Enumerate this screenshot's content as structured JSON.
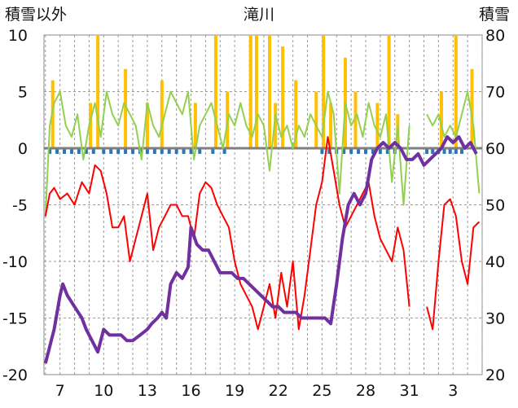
{
  "chart_data": {
    "type": "line",
    "title": "滝川",
    "ylabel_left": "積雪以外",
    "ylabel_right": "積雪",
    "y_left": {
      "min": -20,
      "max": 10,
      "ticks": [
        10,
        5,
        0,
        -5,
        -10,
        -15,
        -20
      ]
    },
    "y_right": {
      "min": 20,
      "max": 80,
      "ticks": [
        80,
        70,
        60,
        50,
        40,
        30,
        20
      ]
    },
    "x_ticks": [
      "7",
      "10",
      "13",
      "16",
      "19",
      "22",
      "25",
      "28",
      "31",
      "3"
    ],
    "x_tick_positions": [
      6,
      9,
      12,
      15,
      18,
      21,
      24,
      27,
      30,
      33
    ],
    "x_range": [
      4.9,
      35
    ],
    "grid": true,
    "series": [
      {
        "axis": "right",
        "color": "#7030a0",
        "values": [
          [
            5.0,
            22
          ],
          [
            5.2,
            24
          ],
          [
            5.4,
            26
          ],
          [
            5.6,
            28
          ],
          [
            5.8,
            31
          ],
          [
            6.0,
            34
          ],
          [
            6.2,
            36
          ],
          [
            6.5,
            34
          ],
          [
            7.0,
            32
          ],
          [
            7.5,
            30
          ],
          [
            7.8,
            28
          ],
          [
            8.2,
            26
          ],
          [
            8.6,
            24
          ],
          [
            9.0,
            28
          ],
          [
            9.4,
            27
          ],
          [
            9.8,
            27
          ],
          [
            10.2,
            27
          ],
          [
            10.6,
            26
          ],
          [
            11.0,
            26
          ],
          [
            11.5,
            27
          ],
          [
            12.0,
            28
          ],
          [
            12.3,
            29
          ],
          [
            12.7,
            30
          ],
          [
            13.0,
            31
          ],
          [
            13.3,
            30
          ],
          [
            13.6,
            36
          ],
          [
            14.0,
            38
          ],
          [
            14.4,
            37
          ],
          [
            14.8,
            39
          ],
          [
            15.0,
            46
          ],
          [
            15.4,
            43
          ],
          [
            15.8,
            42
          ],
          [
            16.2,
            42
          ],
          [
            16.6,
            40
          ],
          [
            17.0,
            38
          ],
          [
            17.4,
            38
          ],
          [
            17.8,
            38
          ],
          [
            18.2,
            37
          ],
          [
            18.6,
            37
          ],
          [
            19.0,
            36
          ],
          [
            19.4,
            35
          ],
          [
            19.8,
            34
          ],
          [
            20.2,
            33
          ],
          [
            20.6,
            32
          ],
          [
            21.0,
            32
          ],
          [
            21.4,
            31
          ],
          [
            21.8,
            31
          ],
          [
            22.2,
            31
          ],
          [
            22.6,
            30
          ],
          [
            23.0,
            30
          ],
          [
            23.4,
            30
          ],
          [
            23.8,
            30
          ],
          [
            24.2,
            30
          ],
          [
            24.6,
            29
          ],
          [
            25.0,
            36
          ],
          [
            25.4,
            44
          ],
          [
            25.8,
            50
          ],
          [
            26.2,
            52
          ],
          [
            26.6,
            50
          ],
          [
            27.0,
            52
          ],
          [
            27.4,
            58
          ],
          [
            27.8,
            60
          ],
          [
            28.2,
            61
          ],
          [
            28.6,
            60
          ],
          [
            29.0,
            61
          ],
          [
            29.4,
            60
          ],
          [
            29.8,
            58
          ],
          [
            30.2,
            58
          ],
          [
            30.6,
            59
          ],
          [
            31.0,
            57
          ],
          [
            31.4,
            58
          ],
          [
            31.8,
            59
          ],
          [
            32.2,
            60
          ],
          [
            32.6,
            62
          ],
          [
            33.0,
            61
          ],
          [
            33.4,
            62
          ],
          [
            33.8,
            60
          ],
          [
            34.2,
            61
          ],
          [
            34.6,
            59
          ]
        ]
      },
      {
        "axis": "left",
        "color": "#ff0000",
        "values": [
          [
            5.0,
            -6
          ],
          [
            5.3,
            -4
          ],
          [
            5.6,
            -3.5
          ],
          [
            6.0,
            -4.5
          ],
          [
            6.5,
            -4
          ],
          [
            7.0,
            -5
          ],
          [
            7.5,
            -3
          ],
          [
            8.0,
            -4
          ],
          [
            8.4,
            -1.5
          ],
          [
            8.8,
            -2
          ],
          [
            9.2,
            -4
          ],
          [
            9.6,
            -7
          ],
          [
            10.0,
            -7
          ],
          [
            10.4,
            -6
          ],
          [
            10.8,
            -10
          ],
          [
            11.2,
            -8
          ],
          [
            11.6,
            -6
          ],
          [
            12.0,
            -4
          ],
          [
            12.4,
            -9
          ],
          [
            12.8,
            -7
          ],
          [
            13.2,
            -6
          ],
          [
            13.6,
            -5
          ],
          [
            14.0,
            -5
          ],
          [
            14.4,
            -6
          ],
          [
            14.8,
            -6
          ],
          [
            15.2,
            -8
          ],
          [
            15.6,
            -4
          ],
          [
            16.0,
            -3
          ],
          [
            16.4,
            -3.5
          ],
          [
            16.8,
            -5
          ],
          [
            17.2,
            -6
          ],
          [
            17.6,
            -7
          ],
          [
            18.0,
            -10
          ],
          [
            18.4,
            -12
          ],
          [
            18.8,
            -13
          ],
          [
            19.2,
            -14
          ],
          [
            19.6,
            -16
          ],
          [
            20.0,
            -14
          ],
          [
            20.4,
            -12
          ],
          [
            20.8,
            -15
          ],
          [
            21.2,
            -11
          ],
          [
            21.6,
            -14
          ],
          [
            22.0,
            -10
          ],
          [
            22.4,
            -16
          ],
          [
            22.8,
            -13
          ],
          [
            23.2,
            -9
          ],
          [
            23.6,
            -5
          ],
          [
            24.0,
            -3
          ],
          [
            24.4,
            1
          ],
          [
            24.8,
            -2
          ],
          [
            25.2,
            -5
          ],
          [
            25.6,
            -7
          ],
          [
            26.0,
            -6
          ],
          [
            26.4,
            -5
          ],
          [
            26.8,
            -4
          ],
          [
            27.2,
            -3
          ],
          [
            27.6,
            -6
          ],
          [
            28.0,
            -8
          ],
          [
            28.4,
            -9
          ],
          [
            28.8,
            -10
          ],
          [
            29.2,
            -7
          ],
          [
            29.6,
            -9
          ],
          [
            30.0,
            -14
          ],
          [
            30.4,
            null
          ],
          [
            31.0,
            null
          ],
          [
            31.2,
            -14
          ],
          [
            31.6,
            -16
          ],
          [
            32.0,
            -10
          ],
          [
            32.4,
            -5
          ],
          [
            32.8,
            -4.5
          ],
          [
            33.2,
            -6
          ],
          [
            33.6,
            -10
          ],
          [
            34.0,
            -12
          ],
          [
            34.4,
            -7
          ],
          [
            34.8,
            -6.5
          ]
        ]
      },
      {
        "axis": "left",
        "color": "#92d050",
        "values": [
          [
            5.0,
            -6
          ],
          [
            5.3,
            2
          ],
          [
            5.6,
            4
          ],
          [
            6.0,
            5
          ],
          [
            6.4,
            2
          ],
          [
            6.8,
            1
          ],
          [
            7.2,
            3
          ],
          [
            7.6,
            -1
          ],
          [
            8.0,
            2
          ],
          [
            8.4,
            4
          ],
          [
            8.8,
            1
          ],
          [
            9.2,
            5
          ],
          [
            9.6,
            3
          ],
          [
            10.0,
            2
          ],
          [
            10.4,
            4
          ],
          [
            10.8,
            3
          ],
          [
            11.2,
            2
          ],
          [
            11.6,
            -1
          ],
          [
            12.0,
            4
          ],
          [
            12.4,
            2
          ],
          [
            12.8,
            1
          ],
          [
            13.2,
            3
          ],
          [
            13.6,
            5
          ],
          [
            14.0,
            4
          ],
          [
            14.4,
            3
          ],
          [
            14.8,
            5
          ],
          [
            15.2,
            -1
          ],
          [
            15.6,
            2
          ],
          [
            16.0,
            3
          ],
          [
            16.4,
            4
          ],
          [
            16.8,
            2
          ],
          [
            17.2,
            0
          ],
          [
            17.6,
            3
          ],
          [
            18.0,
            2
          ],
          [
            18.4,
            4
          ],
          [
            18.8,
            2
          ],
          [
            19.2,
            1
          ],
          [
            19.6,
            3
          ],
          [
            20.0,
            2
          ],
          [
            20.4,
            -2
          ],
          [
            20.8,
            3
          ],
          [
            21.2,
            1
          ],
          [
            21.6,
            2
          ],
          [
            22.0,
            0
          ],
          [
            22.4,
            2
          ],
          [
            22.8,
            1
          ],
          [
            23.2,
            3
          ],
          [
            23.6,
            2
          ],
          [
            24.0,
            1
          ],
          [
            24.4,
            5
          ],
          [
            24.8,
            3
          ],
          [
            25.2,
            -4
          ],
          [
            25.6,
            4
          ],
          [
            26.0,
            2
          ],
          [
            26.4,
            3
          ],
          [
            26.8,
            1
          ],
          [
            27.2,
            4
          ],
          [
            27.6,
            2
          ],
          [
            28.0,
            1
          ],
          [
            28.4,
            3
          ],
          [
            28.8,
            -3
          ],
          [
            29.2,
            2
          ],
          [
            29.6,
            -5
          ],
          [
            30.0,
            2
          ],
          [
            30.4,
            null
          ],
          [
            31.0,
            null
          ],
          [
            31.2,
            3
          ],
          [
            31.6,
            2
          ],
          [
            32.0,
            3
          ],
          [
            32.4,
            1
          ],
          [
            32.8,
            2
          ],
          [
            33.2,
            1
          ],
          [
            33.6,
            3
          ],
          [
            34.0,
            5
          ],
          [
            34.4,
            2
          ],
          [
            34.8,
            -4
          ]
        ]
      },
      {
        "axis": "left",
        "type": "bar",
        "color": "#ffc000",
        "values": [
          [
            5.5,
            6
          ],
          [
            8.1,
            4
          ],
          [
            8.6,
            10
          ],
          [
            10.5,
            7
          ],
          [
            12.0,
            4
          ],
          [
            13.0,
            6
          ],
          [
            15.3,
            4
          ],
          [
            16.7,
            10
          ],
          [
            17.5,
            5
          ],
          [
            19.1,
            10
          ],
          [
            19.5,
            10
          ],
          [
            20.4,
            10
          ],
          [
            20.8,
            4
          ],
          [
            21.3,
            9
          ],
          [
            22.2,
            6
          ],
          [
            23.6,
            5
          ],
          [
            24.1,
            10
          ],
          [
            24.6,
            4
          ],
          [
            25.6,
            8
          ],
          [
            26.3,
            5
          ],
          [
            27.8,
            4
          ],
          [
            28.6,
            10
          ],
          [
            29.2,
            3
          ],
          [
            32.2,
            5
          ],
          [
            33.2,
            10
          ],
          [
            34.3,
            7
          ]
        ]
      },
      {
        "axis": "left",
        "type": "bar",
        "color": "#2e75b6",
        "values": [
          [
            5.3,
            -0.5
          ],
          [
            5.8,
            -0.5
          ],
          [
            6.3,
            -0.5
          ],
          [
            6.8,
            -0.5
          ],
          [
            7.3,
            -0.5
          ],
          [
            7.8,
            -0.5
          ],
          [
            8.3,
            -0.5
          ],
          [
            9.0,
            -0.5
          ],
          [
            9.5,
            -0.5
          ],
          [
            10.0,
            -0.5
          ],
          [
            10.5,
            -0.5
          ],
          [
            11.0,
            -0.5
          ],
          [
            11.5,
            -0.5
          ],
          [
            12.0,
            -0.5
          ],
          [
            12.5,
            -0.5
          ],
          [
            13.0,
            -0.5
          ],
          [
            13.5,
            -0.5
          ],
          [
            14.0,
            -0.5
          ],
          [
            14.5,
            -0.5
          ],
          [
            15.0,
            -0.5
          ],
          [
            15.6,
            -0.5
          ],
          [
            16.5,
            -0.5
          ],
          [
            17.3,
            -0.5
          ],
          [
            24.0,
            -0.5
          ],
          [
            24.5,
            -0.5
          ],
          [
            25.0,
            -0.5
          ],
          [
            25.5,
            -0.5
          ],
          [
            26.0,
            -0.5
          ],
          [
            26.5,
            -0.5
          ],
          [
            27.0,
            -0.5
          ],
          [
            27.5,
            -0.5
          ],
          [
            28.0,
            -0.5
          ],
          [
            28.5,
            -0.5
          ],
          [
            29.0,
            -0.5
          ],
          [
            31.2,
            -0.5
          ],
          [
            31.6,
            -0.5
          ],
          [
            32.0,
            -0.5
          ],
          [
            32.4,
            -0.5
          ],
          [
            32.8,
            -0.5
          ],
          [
            33.2,
            -0.5
          ],
          [
            33.6,
            -0.5
          ]
        ]
      }
    ]
  }
}
